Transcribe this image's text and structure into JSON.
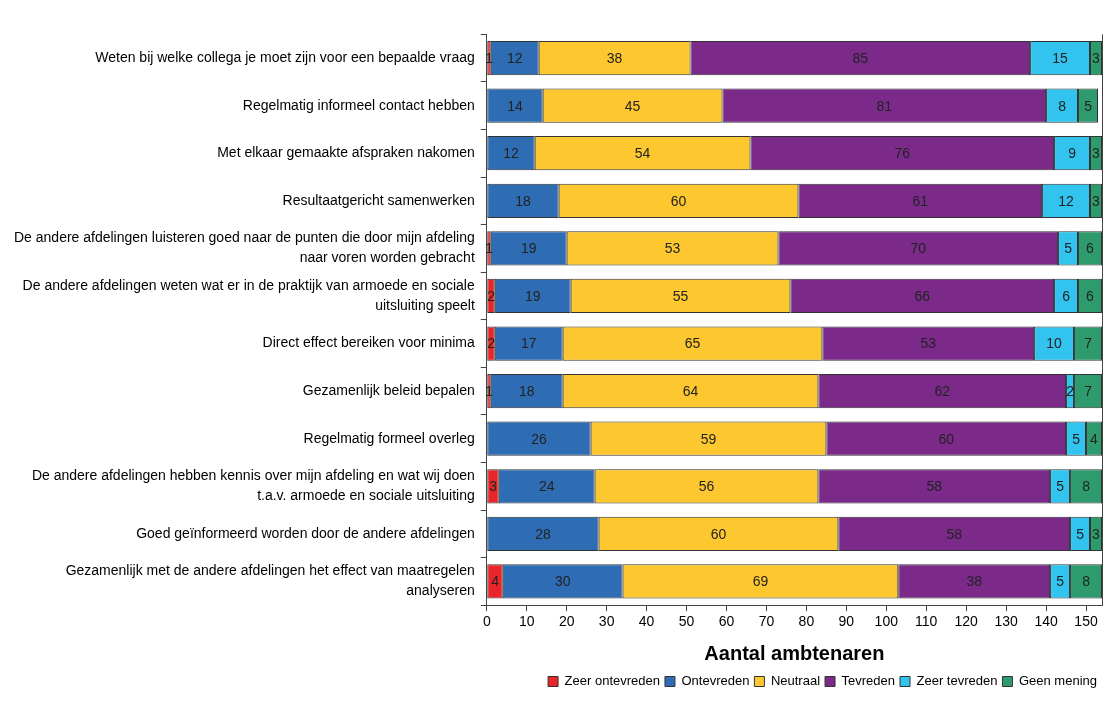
{
  "chart_data": {
    "type": "bar",
    "orientation": "horizontal",
    "stacked": true,
    "xlabel": "Aantal ambtenaren",
    "categories": [
      "Weten bij welke collega je moet zijn voor een bepaalde vraag",
      "Regelmatig informeel contact hebben",
      "Met elkaar gemaakte afspraken nakomen",
      "Resultaatgericht samenwerken",
      "De andere afdelingen luisteren goed naar de punten die door mijn afdeling naar voren worden gebracht",
      "De andere afdelingen weten wat er in de praktijk van armoede en sociale uitsluiting speelt",
      "Direct effect bereiken voor minima",
      "Gezamenlijk beleid bepalen",
      "Regelmatig formeel overleg",
      "De andere afdelingen hebben kennis over mijn afdeling en wat wij doen t.a.v. armoede en sociale uitsluiting",
      "Goed geïnformeerd worden door de andere afdelingen",
      "Gezamenlijk met de andere afdelingen het effect van maatregelen analyseren"
    ],
    "series": [
      {
        "name": "Zeer ontevreden",
        "color": "#e8262a",
        "values": [
          1,
          null,
          null,
          null,
          1,
          2,
          2,
          1,
          null,
          3,
          null,
          4
        ]
      },
      {
        "name": "Ontevreden",
        "color": "#2e6db4",
        "values": [
          12,
          14,
          12,
          18,
          19,
          19,
          17,
          18,
          26,
          24,
          28,
          30
        ]
      },
      {
        "name": "Neutraal",
        "color": "#fdc82f",
        "values": [
          38,
          45,
          54,
          60,
          53,
          55,
          65,
          64,
          59,
          56,
          60,
          69
        ]
      },
      {
        "name": "Tevreden",
        "color": "#7b2a8a",
        "values": [
          85,
          81,
          76,
          61,
          70,
          66,
          53,
          62,
          60,
          58,
          58,
          38
        ]
      },
      {
        "name": "Zeer tevreden",
        "color": "#33c3ef",
        "values": [
          15,
          8,
          9,
          12,
          5,
          6,
          10,
          2,
          5,
          5,
          5,
          5
        ]
      },
      {
        "name": "Geen mening",
        "color": "#2e9b6e",
        "values": [
          3,
          5,
          3,
          3,
          6,
          6,
          7,
          7,
          4,
          8,
          3,
          8
        ]
      }
    ],
    "xlim": [
      0,
      154
    ],
    "xticks": [
      0,
      10,
      20,
      30,
      40,
      50,
      60,
      70,
      80,
      90,
      100,
      110,
      120,
      130,
      140,
      150
    ],
    "grid": false,
    "legend": "bottom right",
    "data_labels": true
  }
}
